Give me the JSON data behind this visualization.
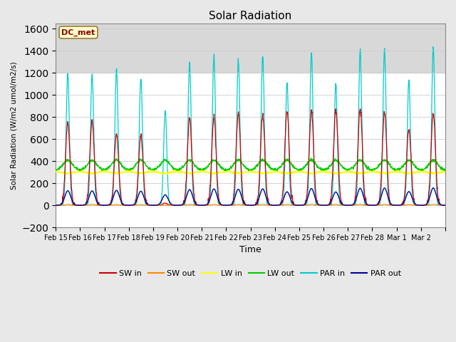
{
  "title": "Solar Radiation",
  "ylabel": "Solar Radiation (W/m2 umol/m2/s)",
  "xlabel": "Time",
  "ylim": [
    -200,
    1650
  ],
  "yticks": [
    -200,
    0,
    200,
    400,
    600,
    800,
    1000,
    1200,
    1400,
    1600
  ],
  "background_color": "#e8e8e8",
  "plot_bg_color": "#ffffff",
  "grid_color": "#cccccc",
  "shaded_band": [
    1200,
    1650
  ],
  "series_colors": {
    "SW_in": "#cc0000",
    "SW_out": "#ff8800",
    "LW_in": "#ffff00",
    "LW_out": "#00cc00",
    "PAR_in": "#00cccc",
    "PAR_out": "#000099"
  },
  "dc_met_label": "DC_met",
  "n_days": 16,
  "xtick_labels": [
    "Feb 15",
    "Feb 16",
    "Feb 17",
    "Feb 18",
    "Feb 19",
    "Feb 20",
    "Feb 21",
    "Feb 22",
    "Feb 23",
    "Feb 24",
    "Feb 25",
    "Feb 26",
    "Feb 27",
    "Feb 28",
    "Mar 1",
    "Mar 2"
  ],
  "sw_peaks": [
    750,
    760,
    640,
    630,
    20,
    790,
    800,
    830,
    810,
    850,
    860,
    860,
    880,
    840,
    690,
    840
  ],
  "par_peaks": [
    1200,
    1190,
    1230,
    1160,
    860,
    1290,
    1350,
    1320,
    1350,
    1110,
    1380,
    1100,
    1400,
    1420,
    1130,
    1430
  ],
  "LW_in_base": 305,
  "LW_out_base": 320,
  "LW_out_peak_add": 90,
  "PAR_out_scale": 0.11,
  "figsize": [
    6.4,
    4.8
  ],
  "dpi": 100
}
